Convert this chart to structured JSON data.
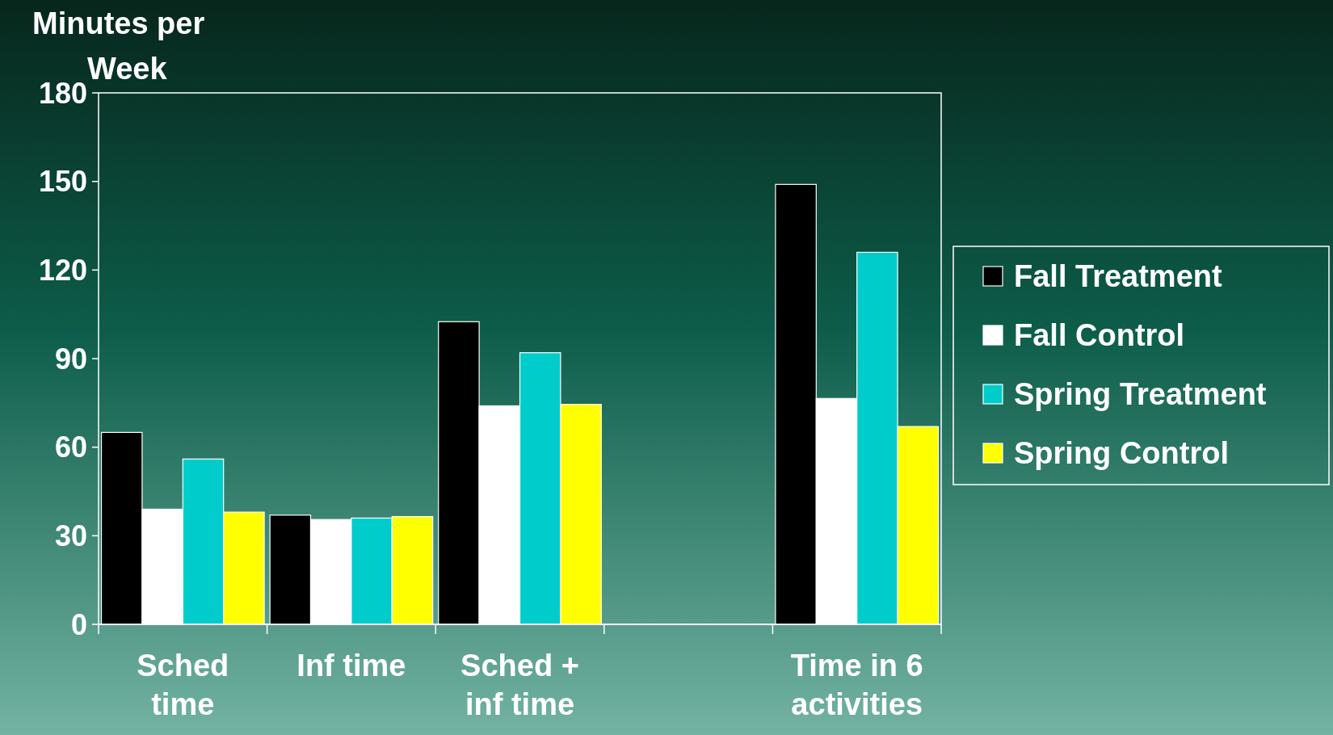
{
  "chart_data": {
    "type": "bar",
    "ylabel": "Minutes per Week",
    "categories": [
      "Sched time",
      "Inf time",
      "Sched + inf time",
      null,
      "Time in 6 activities"
    ],
    "series": [
      {
        "name": "Fall Treatment",
        "color": "#000000",
        "values": [
          65,
          37,
          102.5,
          null,
          149
        ]
      },
      {
        "name": "Fall Control",
        "color": "#ffffff",
        "values": [
          39,
          35.5,
          74,
          null,
          76.5
        ]
      },
      {
        "name": "Spring Treatment",
        "color": "#00cccc",
        "values": [
          56,
          36,
          92,
          null,
          126
        ]
      },
      {
        "name": "Spring Control",
        "color": "#ffff00",
        "values": [
          38,
          36.5,
          74.5,
          null,
          67
        ]
      }
    ],
    "ylim": [
      0,
      180
    ],
    "yticks": [
      0,
      30,
      60,
      90,
      120,
      150,
      180
    ],
    "grid": false,
    "legend": "right"
  }
}
